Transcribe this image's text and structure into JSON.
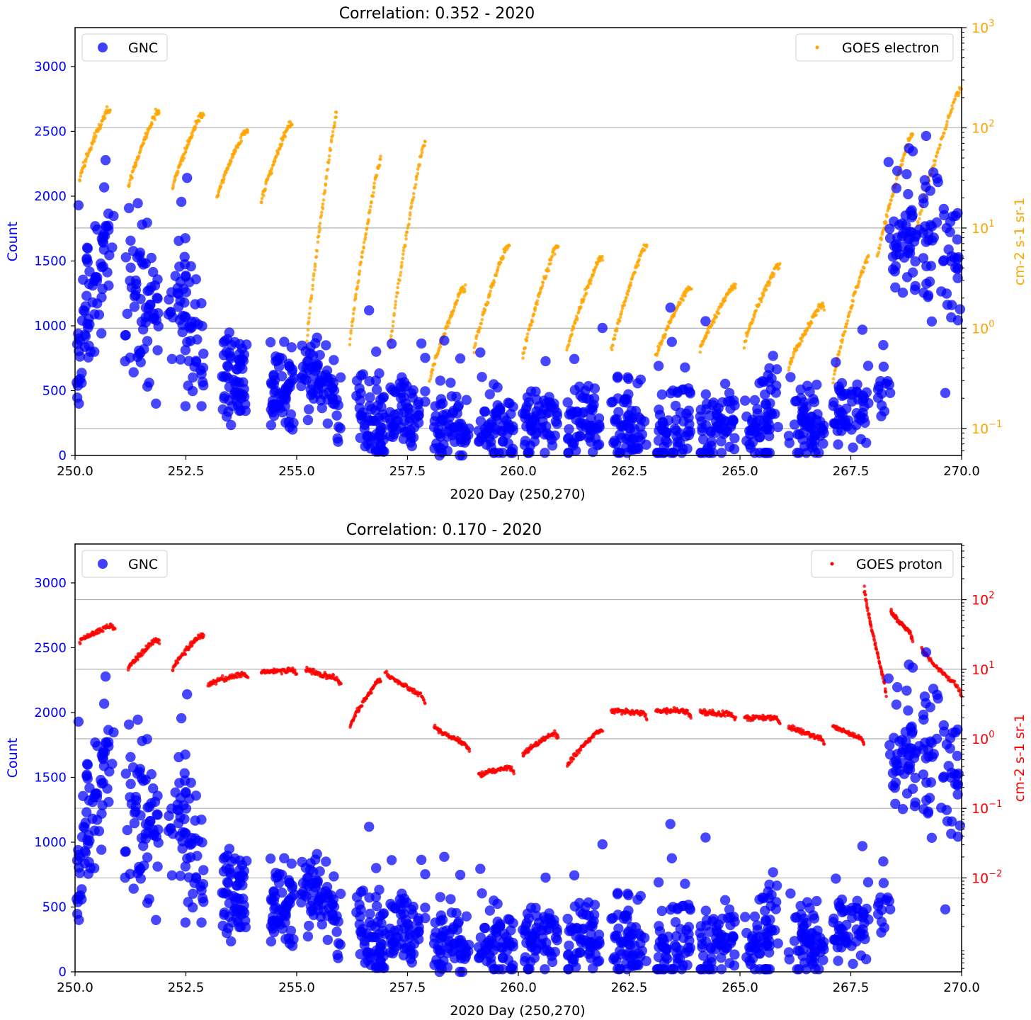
{
  "colors": {
    "gnc": "#0000ff",
    "electron": "#ffa500",
    "proton": "#ff0000",
    "axis": "#000000",
    "grid": "#b0b0b0"
  },
  "chart_data": [
    {
      "type": "scatter",
      "title": "Correlation: 0.352 - 2020",
      "xlabel": "2020 Day (250,270)",
      "ylabel": "Count",
      "ylabel_right": "cm-2 s-1 sr-1",
      "xlim": [
        250,
        270
      ],
      "ylim": [
        0,
        3300
      ],
      "ylim_right_log10": [
        -1.27,
        3.0
      ],
      "right_scale": "log",
      "grid": "right-axis major",
      "x_ticks": [
        "250.0",
        "252.5",
        "255.0",
        "257.5",
        "260.0",
        "262.5",
        "265.0",
        "267.5",
        "270.0"
      ],
      "y_ticks": [
        "0",
        "500",
        "1000",
        "1500",
        "2000",
        "2500",
        "3000"
      ],
      "y_right_ticks": [
        {
          "base": "10",
          "exp": "−1",
          "log": -1
        },
        {
          "base": "10",
          "exp": "0",
          "log": 0
        },
        {
          "base": "10",
          "exp": "1",
          "log": 1
        },
        {
          "base": "10",
          "exp": "2",
          "log": 2
        },
        {
          "base": "10",
          "exp": "3",
          "log": 3
        }
      ],
      "legend_left": {
        "label": "GNC",
        "placement": "upper-left"
      },
      "legend_right": {
        "label": "GOES electron",
        "placement": "upper-right"
      },
      "series": [
        {
          "name": "GNC",
          "axis": "left",
          "segments": [
            {
              "x": [
                250.0,
                250.3
              ],
              "y": [
                450,
                1300
              ],
              "lo": 400,
              "hi": 2600,
              "n": 36
            },
            {
              "x": [
                250.3,
                250.9
              ],
              "y": [
                1000,
                1900
              ],
              "lo": 800,
              "hi": 2600,
              "n": 44
            },
            {
              "x": [
                251.1,
                251.9
              ],
              "y": [
                1400,
                900
              ],
              "lo": 400,
              "hi": 2400,
              "n": 64
            },
            {
              "x": [
                252.1,
                252.9
              ],
              "y": [
                1300,
                900
              ],
              "lo": 380,
              "hi": 2500,
              "n": 64
            },
            {
              "x": [
                253.3,
                253.9
              ],
              "y": [
                700,
                550
              ],
              "lo": 200,
              "hi": 1350,
              "n": 60
            },
            {
              "x": [
                254.4,
                255.0
              ],
              "y": [
                520,
                450
              ],
              "lo": 150,
              "hi": 1200,
              "n": 60
            },
            {
              "x": [
                255.1,
                256.0
              ],
              "y": [
                700,
                400
              ],
              "lo": 0,
              "hi": 1050,
              "n": 70
            },
            {
              "x": [
                256.3,
                257.0
              ],
              "y": [
                280,
                260
              ],
              "lo": 30,
              "hi": 1200,
              "n": 62
            },
            {
              "x": [
                257.1,
                257.9
              ],
              "y": [
                300,
                300
              ],
              "lo": 20,
              "hi": 1100,
              "n": 62
            },
            {
              "x": [
                258.1,
                258.9
              ],
              "y": [
                220,
                220
              ],
              "lo": 0,
              "hi": 1000,
              "n": 62
            },
            {
              "x": [
                259.1,
                259.9
              ],
              "y": [
                220,
                230
              ],
              "lo": 20,
              "hi": 930,
              "n": 62
            },
            {
              "x": [
                260.1,
                260.9
              ],
              "y": [
                240,
                260
              ],
              "lo": 20,
              "hi": 1200,
              "n": 62
            },
            {
              "x": [
                261.1,
                261.9
              ],
              "y": [
                220,
                240
              ],
              "lo": 20,
              "hi": 1020,
              "n": 62
            },
            {
              "x": [
                262.1,
                262.9
              ],
              "y": [
                230,
                220
              ],
              "lo": 20,
              "hi": 1260,
              "n": 62
            },
            {
              "x": [
                263.1,
                263.9
              ],
              "y": [
                200,
                220
              ],
              "lo": 20,
              "hi": 1260,
              "n": 62
            },
            {
              "x": [
                264.1,
                264.9
              ],
              "y": [
                210,
                230
              ],
              "lo": 20,
              "hi": 1080,
              "n": 62
            },
            {
              "x": [
                265.1,
                265.9
              ],
              "y": [
                220,
                260
              ],
              "lo": 20,
              "hi": 1270,
              "n": 62
            },
            {
              "x": [
                266.1,
                266.9
              ],
              "y": [
                220,
                260
              ],
              "lo": 20,
              "hi": 1040,
              "n": 62
            },
            {
              "x": [
                267.1,
                267.9
              ],
              "y": [
                250,
                400
              ],
              "lo": 30,
              "hi": 1130,
              "n": 56
            },
            {
              "x": [
                268.1,
                268.4
              ],
              "y": [
                350,
                500
              ],
              "lo": 150,
              "hi": 900,
              "n": 14
            },
            {
              "x": [
                268.3,
                269.1
              ],
              "y": [
                1600,
                1600
              ],
              "lo": 800,
              "hi": 2450,
              "n": 52
            },
            {
              "x": [
                269.1,
                270.0
              ],
              "y": [
                1750,
                1500
              ],
              "lo": 280,
              "hi": 2800,
              "n": 60
            }
          ]
        },
        {
          "name": "GOES electron",
          "axis": "right",
          "segments": [
            {
              "x": [
                250.1,
                250.8
              ],
              "y": [
                30,
                180
              ]
            },
            {
              "x": [
                251.2,
                251.9
              ],
              "y": [
                25,
                170
              ]
            },
            {
              "x": [
                252.2,
                252.9
              ],
              "y": [
                25,
                160
              ]
            },
            {
              "x": [
                253.2,
                253.9
              ],
              "y": [
                20,
                110
              ]
            },
            {
              "x": [
                254.2,
                254.9
              ],
              "y": [
                18,
                130
              ]
            },
            {
              "x": [
                255.2,
                255.9
              ],
              "y": [
                0.5,
                170
              ]
            },
            {
              "x": [
                256.2,
                256.9
              ],
              "y": [
                0.7,
                60
              ]
            },
            {
              "x": [
                257.1,
                257.9
              ],
              "y": [
                0.6,
                90
              ]
            },
            {
              "x": [
                258.0,
                258.8
              ],
              "y": [
                0.3,
                3
              ]
            },
            {
              "x": [
                259.0,
                259.8
              ],
              "y": [
                0.6,
                8
              ]
            },
            {
              "x": [
                260.1,
                260.9
              ],
              "y": [
                0.5,
                8
              ]
            },
            {
              "x": [
                261.1,
                261.9
              ],
              "y": [
                0.6,
                6
              ]
            },
            {
              "x": [
                262.1,
                262.9
              ],
              "y": [
                0.6,
                8
              ]
            },
            {
              "x": [
                263.1,
                263.9
              ],
              "y": [
                0.5,
                3
              ]
            },
            {
              "x": [
                264.1,
                264.9
              ],
              "y": [
                0.6,
                3
              ]
            },
            {
              "x": [
                265.1,
                265.9
              ],
              "y": [
                0.7,
                5
              ]
            },
            {
              "x": [
                266.1,
                266.9
              ],
              "y": [
                0.4,
                2
              ]
            },
            {
              "x": [
                267.1,
                267.9
              ],
              "y": [
                0.3,
                6
              ]
            },
            {
              "x": [
                268.1,
                268.9
              ],
              "y": [
                5,
                100
              ]
            },
            {
              "x": [
                269.0,
                270.0
              ],
              "y": [
                10,
                300
              ]
            }
          ]
        }
      ]
    },
    {
      "type": "scatter",
      "title": "Correlation: 0.170 - 2020",
      "xlabel": "2020 Day (250,270)",
      "ylabel": "Count",
      "ylabel_right": "cm-2 s-1 sr-1",
      "xlim": [
        250,
        270
      ],
      "ylim": [
        0,
        3300
      ],
      "ylim_right_log10": [
        -3.35,
        2.8
      ],
      "right_scale": "log",
      "grid": "right-axis major",
      "x_ticks": [
        "250.0",
        "252.5",
        "255.0",
        "257.5",
        "260.0",
        "262.5",
        "265.0",
        "267.5",
        "270.0"
      ],
      "y_ticks": [
        "0",
        "500",
        "1000",
        "1500",
        "2000",
        "2500",
        "3000"
      ],
      "y_right_ticks": [
        {
          "base": "10",
          "exp": "−2",
          "log": -2
        },
        {
          "base": "10",
          "exp": "−1",
          "log": -1
        },
        {
          "base": "10",
          "exp": "0",
          "log": 0
        },
        {
          "base": "10",
          "exp": "1",
          "log": 1
        },
        {
          "base": "10",
          "exp": "2",
          "log": 2
        }
      ],
      "legend_left": {
        "label": "GNC",
        "placement": "upper-left"
      },
      "legend_right": {
        "label": "GOES proton",
        "placement": "upper-right"
      },
      "series": [
        {
          "name": "GNC",
          "axis": "left",
          "same_as_previous_chart": true
        },
        {
          "name": "GOES proton",
          "axis": "right",
          "segments": [
            {
              "x": [
                250.1,
                250.9
              ],
              "y": [
                25,
                45
              ]
            },
            {
              "x": [
                251.2,
                251.9
              ],
              "y": [
                10,
                30
              ]
            },
            {
              "x": [
                252.2,
                252.9
              ],
              "y": [
                10,
                35
              ]
            },
            {
              "x": [
                253.0,
                253.9
              ],
              "y": [
                6,
                9
              ]
            },
            {
              "x": [
                254.2,
                255.0
              ],
              "y": [
                9,
                10
              ]
            },
            {
              "x": [
                255.2,
                256.0
              ],
              "y": [
                10,
                7
              ]
            },
            {
              "x": [
                256.2,
                256.9
              ],
              "y": [
                1.5,
                8
              ]
            },
            {
              "x": [
                257.0,
                257.9
              ],
              "y": [
                9,
                4
              ]
            },
            {
              "x": [
                258.1,
                258.9
              ],
              "y": [
                1.5,
                0.8
              ]
            },
            {
              "x": [
                259.1,
                259.9
              ],
              "y": [
                0.3,
                0.4
              ]
            },
            {
              "x": [
                260.1,
                260.9
              ],
              "y": [
                0.6,
                1.3
              ]
            },
            {
              "x": [
                261.1,
                261.9
              ],
              "y": [
                0.4,
                1.5
              ]
            },
            {
              "x": [
                262.1,
                262.9
              ],
              "y": [
                2.5,
                2.4
              ]
            },
            {
              "x": [
                263.1,
                263.9
              ],
              "y": [
                2.5,
                2.5
              ]
            },
            {
              "x": [
                264.1,
                264.9
              ],
              "y": [
                2.4,
                2.2
              ]
            },
            {
              "x": [
                265.1,
                265.9
              ],
              "y": [
                2.0,
                2.0
              ]
            },
            {
              "x": [
                266.1,
                266.9
              ],
              "y": [
                1.5,
                1.0
              ]
            },
            {
              "x": [
                267.1,
                267.8
              ],
              "y": [
                1.5,
                1.0
              ]
            },
            {
              "x": [
                267.8,
                268.3
              ],
              "y": [
                150,
                5
              ]
            },
            {
              "x": [
                268.4,
                268.9
              ],
              "y": [
                70,
                30
              ]
            },
            {
              "x": [
                269.1,
                270.0
              ],
              "y": [
                20,
                5
              ]
            }
          ]
        }
      ]
    }
  ]
}
